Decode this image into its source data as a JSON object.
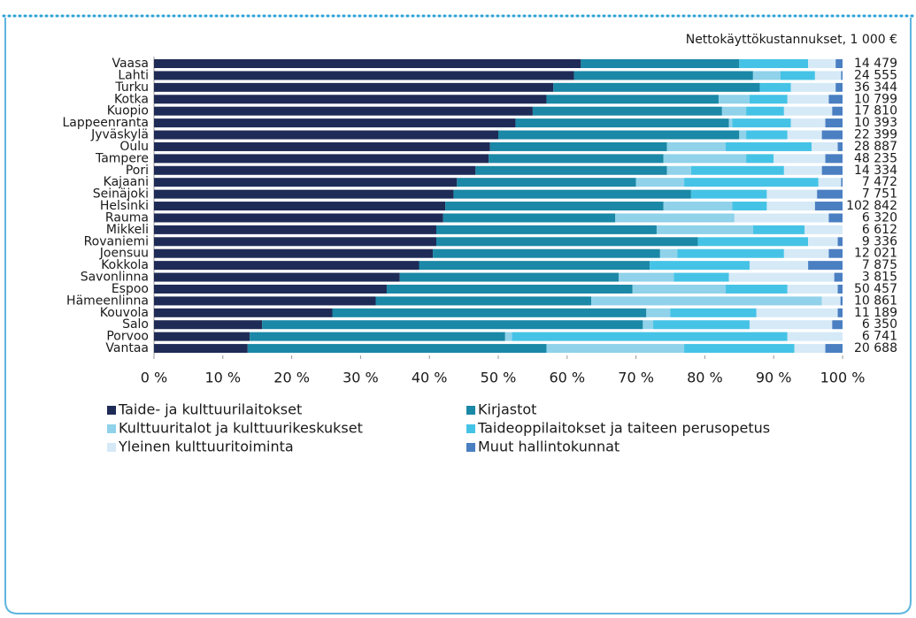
{
  "chart_data": {
    "type": "stacked_bar_horizontal",
    "categories": [
      "Vaasa",
      "Lahti",
      "Turku",
      "Kotka",
      "Kuopio",
      "Lappeenranta",
      "Jyväskylä",
      "Oulu",
      "Tampere",
      "Pori",
      "Kajaani",
      "Seinäjoki",
      "Helsinki",
      "Rauma",
      "Mikkeli",
      "Rovaniemi",
      "Joensuu",
      "Kokkola",
      "Savonlinna",
      "Espoo",
      "Hämeenlinna",
      "Kouvola",
      "Salo",
      "Porvoo",
      "Vantaa"
    ],
    "series": [
      {
        "name": "Taide- ja kulttuurilaitokset",
        "color": "#1f2b57",
        "values": [
          62,
          61,
          58,
          57,
          55,
          52.5,
          50,
          48.8,
          48.6,
          46.7,
          44,
          43.5,
          42.3,
          42,
          41,
          41,
          40.5,
          38.5,
          35.7,
          33.8,
          32.2,
          25.9,
          15.7,
          13.9,
          13.6
        ]
      },
      {
        "name": "Kirjastot",
        "color": "#1a88a6",
        "values": [
          23,
          26,
          30,
          25,
          27.5,
          31,
          35,
          25.7,
          25.4,
          27.8,
          26,
          34.5,
          31.7,
          25,
          32,
          38,
          33,
          33.5,
          31.8,
          35.7,
          31.3,
          45.6,
          55.3,
          37.1,
          43.4
        ]
      },
      {
        "name": "Kulttuuritalot ja kulttuurikeskukset",
        "color": "#8fd2ea",
        "values": [
          0,
          4,
          0,
          4.5,
          3.5,
          0.5,
          1,
          8.5,
          12,
          3.5,
          7,
          0,
          10,
          17.3,
          14,
          0,
          2.5,
          0,
          8,
          13.5,
          33.5,
          3.5,
          1.5,
          1,
          20
        ]
      },
      {
        "name": "Taideoppilaitokset ja taiteen perusopetus",
        "color": "#45c3e6",
        "values": [
          10,
          5,
          4.5,
          5.5,
          5.5,
          8.5,
          6,
          12.5,
          4,
          13.5,
          19.5,
          11,
          5,
          0,
          7.5,
          16,
          15.5,
          14.5,
          8,
          9,
          0,
          12.5,
          14,
          40,
          16
        ]
      },
      {
        "name": "Yleinen kulttuuritoiminta",
        "color": "#d5e9f7",
        "values": [
          4,
          3.8,
          6.5,
          6,
          7,
          5,
          5,
          3.8,
          7.5,
          5.5,
          3.3,
          7.3,
          7,
          13.7,
          5.5,
          4.3,
          6.5,
          8.5,
          15.3,
          7.3,
          2.7,
          11.8,
          12,
          8,
          4.5
        ]
      },
      {
        "name": "Muut hallintokunnat",
        "color": "#4a7fc2",
        "values": [
          1,
          0.2,
          1,
          2,
          1.5,
          2.5,
          3,
          0.7,
          2.5,
          3,
          0.2,
          3.7,
          4,
          2,
          0,
          0.7,
          2,
          5,
          1.2,
          0.7,
          0.3,
          0.7,
          1.5,
          0,
          2.5
        ]
      }
    ],
    "xlim": [
      0,
      100
    ],
    "xticks": [
      {
        "value": 0,
        "label": "0 %"
      },
      {
        "value": 10,
        "label": "10 %"
      },
      {
        "value": 20,
        "label": "20 %"
      },
      {
        "value": 30,
        "label": "30 %"
      },
      {
        "value": 40,
        "label": "40 %"
      },
      {
        "value": 50,
        "label": "50 %"
      },
      {
        "value": 60,
        "label": "60 %"
      },
      {
        "value": 70,
        "label": "70 %"
      },
      {
        "value": 80,
        "label": "80 %"
      },
      {
        "value": 90,
        "label": "90 %"
      },
      {
        "value": 100,
        "label": "100 %"
      }
    ],
    "totals": {
      "title": "Nettokäyttökustannukset, 1 000 €",
      "values": [
        14479,
        24555,
        36344,
        10799,
        17810,
        10393,
        22399,
        28887,
        48235,
        14334,
        7472,
        7751,
        102842,
        6320,
        6612,
        9336,
        12021,
        7875,
        3815,
        50457,
        10861,
        11189,
        6350,
        6741,
        20688
      ],
      "value_labels": [
        "14 479",
        "24 555",
        "36 344",
        "10 799",
        "17 810",
        "10 393",
        "22 399",
        "28 887",
        "48 235",
        "14 334",
        "7 472",
        "7 751",
        "102 842",
        "6 320",
        "6 612",
        "9 336",
        "12 021",
        "7 875",
        "3 815",
        "50 457",
        "10 861",
        "11 189",
        "6 350",
        "6 741",
        "20 688"
      ]
    }
  }
}
